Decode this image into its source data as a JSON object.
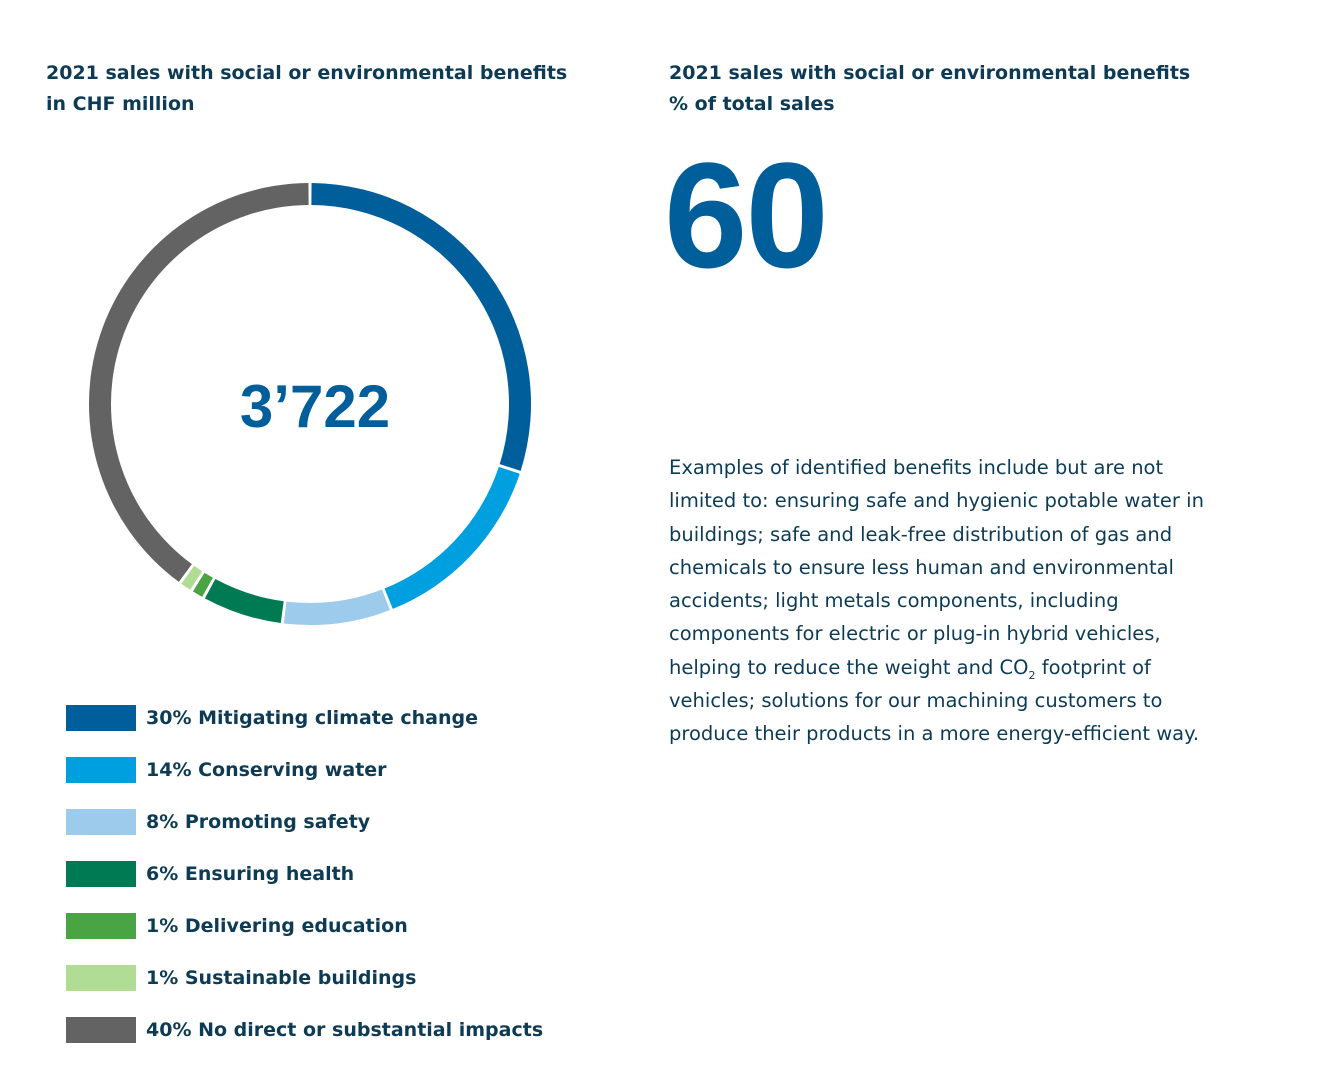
{
  "left_panel": {
    "title_line1": "2021 sales with social or environmental benefits",
    "title_line2": "in CHF million",
    "total": "3’722"
  },
  "right_panel": {
    "title_line1": "2021 sales with social or environmental benefits",
    "title_line2": "% of total sales",
    "big_value": "60",
    "description_lines": [
      "Examples of identified benefits include but are not",
      "limited to: ensuring safe and hygienic potable water in",
      "buildings; safe and leak-free distribution of gas and",
      "chemicals to ensure less human and environmental",
      "accidents; light metals components, including",
      "components for electric or plug-in hybrid vehicles,",
      "helping to reduce the weight and CO",
      "2",
      " footprint of",
      "vehicles; solutions for our machining customers to",
      "produce their products in a more energy-efficient way."
    ]
  },
  "chart_data": {
    "type": "pie",
    "style": "donut",
    "center_label": "3’722",
    "categories": [
      "Mitigating climate change",
      "Conserving water",
      "Promoting safety",
      "Ensuring health",
      "Delivering education",
      "Sustainable buildings",
      "No direct or substantial impacts"
    ],
    "values": [
      30,
      14,
      8,
      6,
      1,
      1,
      40
    ],
    "legend_labels": [
      "30% Mitigating climate change",
      "14% Conserving water",
      "8% Promoting safety",
      "6% Ensuring health",
      "1% Delivering education",
      "1% Sustainable buildings",
      "40% No direct or substantial impacts"
    ],
    "colors": [
      "#005e9b",
      "#009fe0",
      "#9ccbeb",
      "#007a52",
      "#4aa444",
      "#b0dc95",
      "#636363"
    ],
    "legend_position": "bottom-left"
  }
}
